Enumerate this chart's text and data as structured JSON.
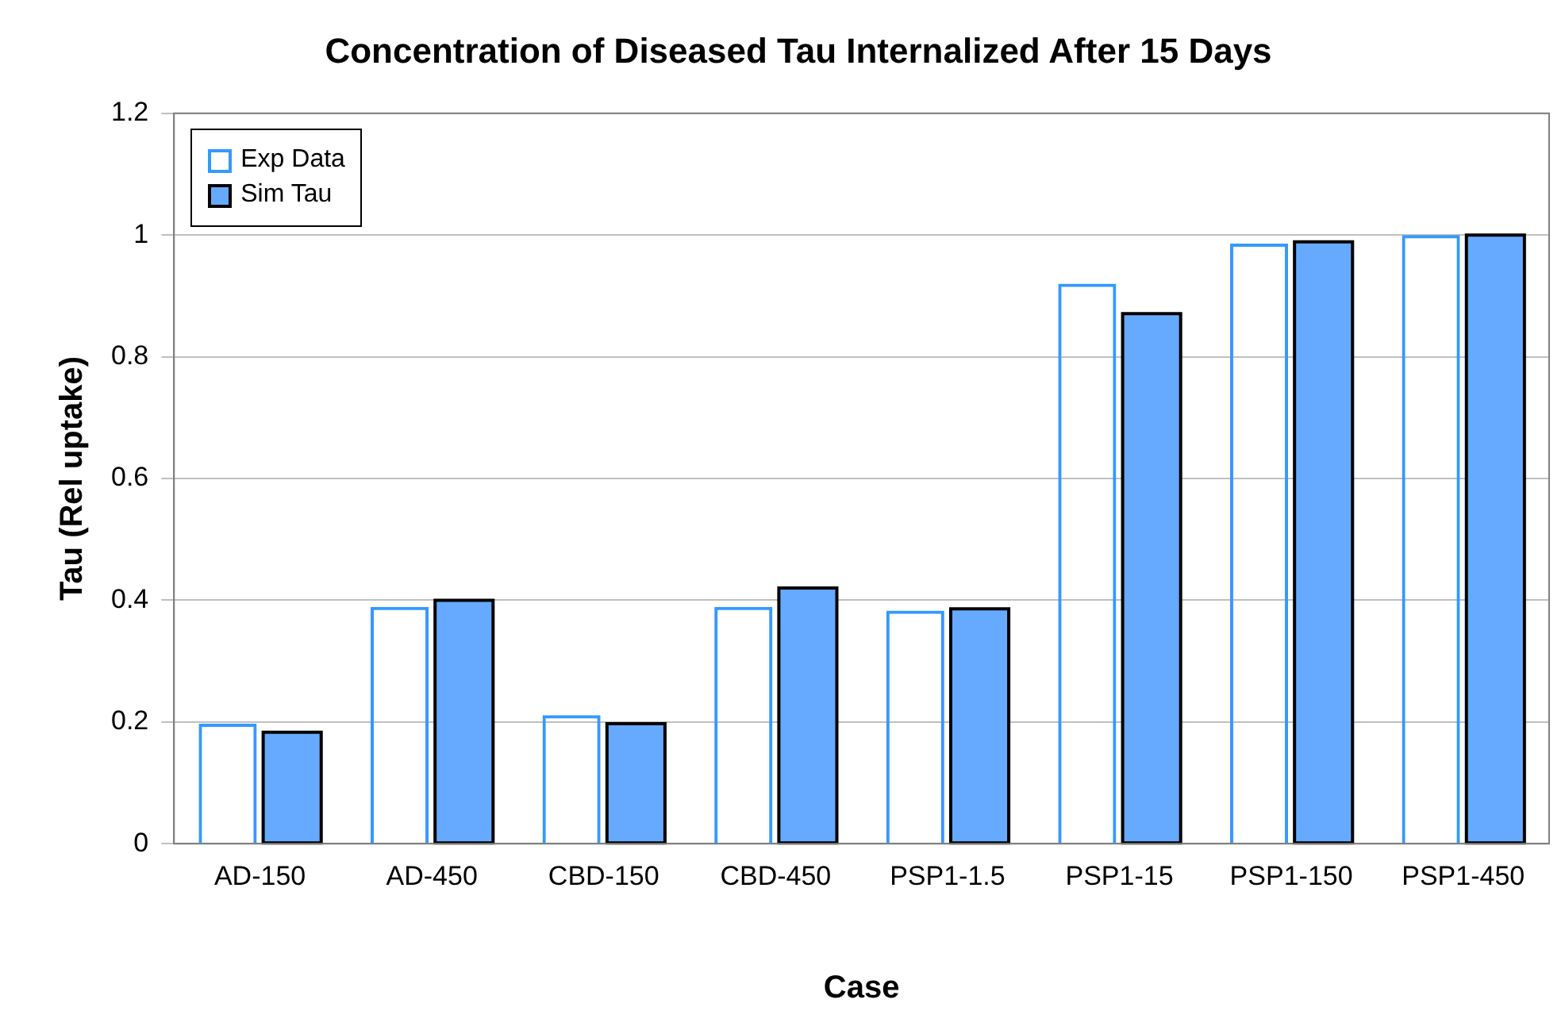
{
  "chart_data": {
    "type": "bar",
    "title": "Concentration of Diseased Tau Internalized After 15 Days",
    "xlabel": "Case",
    "ylabel": "Tau (Rel uptake)",
    "categories": [
      "AD-150",
      "AD-450",
      "CBD-150",
      "CBD-450",
      "PSP1-1.5",
      "PSP1-15",
      "PSP1-150",
      "PSP1-450"
    ],
    "series": [
      {
        "name": "Exp Data",
        "color": "#3399ff",
        "values": [
          0.197,
          0.389,
          0.211,
          0.389,
          0.383,
          0.92,
          0.986,
          1.0
        ]
      },
      {
        "name": "Sim Tau",
        "color": "#66aaff",
        "values": [
          0.183,
          0.4,
          0.197,
          0.42,
          0.386,
          0.871,
          0.989,
          1.0
        ]
      }
    ],
    "ylim": [
      0,
      1.2
    ],
    "yticks": [
      0,
      0.2,
      0.4,
      0.6,
      0.8,
      1,
      1.2
    ],
    "grid": "y",
    "legend": "top left"
  }
}
